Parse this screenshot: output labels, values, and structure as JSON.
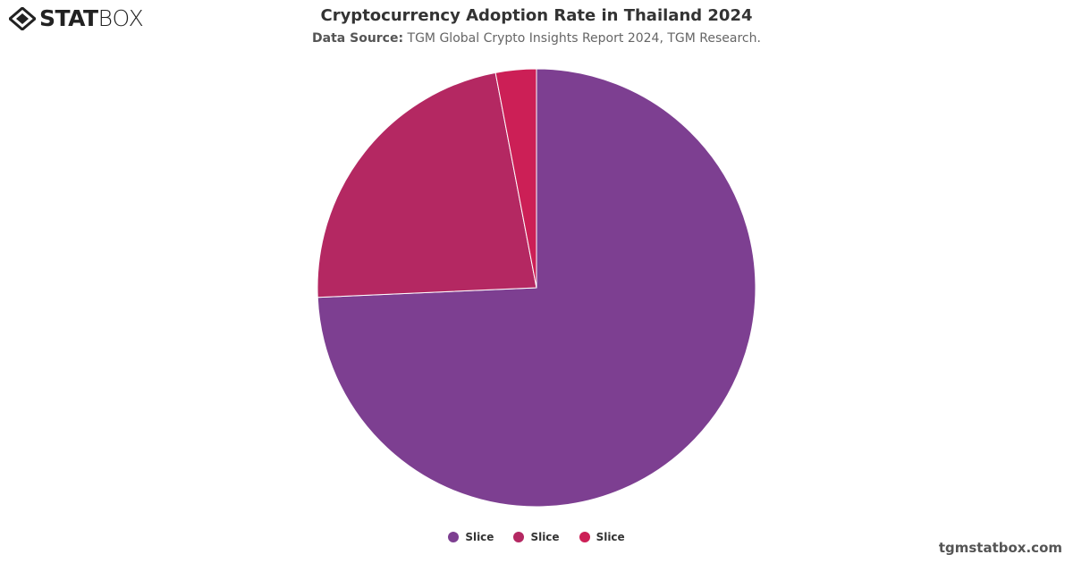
{
  "logo": {
    "text_bold": "STAT",
    "text_light": "BOX"
  },
  "chart_data": {
    "type": "pie",
    "title": "Cryptocurrency Adoption Rate in Thailand 2024",
    "subtitle_label": "Data Source:",
    "subtitle": "TGM Global Crypto Insights Report 2024, TGM Research.",
    "legend_placement": "bottom",
    "slices": [
      {
        "name": "Slice",
        "value": 74.3,
        "color": "#7d3f91"
      },
      {
        "name": "Slice",
        "value": 22.7,
        "color": "#b42862"
      },
      {
        "name": "Slice",
        "value": 3.0,
        "color": "#cc1f56"
      }
    ]
  },
  "credit": "tgmstatbox.com"
}
